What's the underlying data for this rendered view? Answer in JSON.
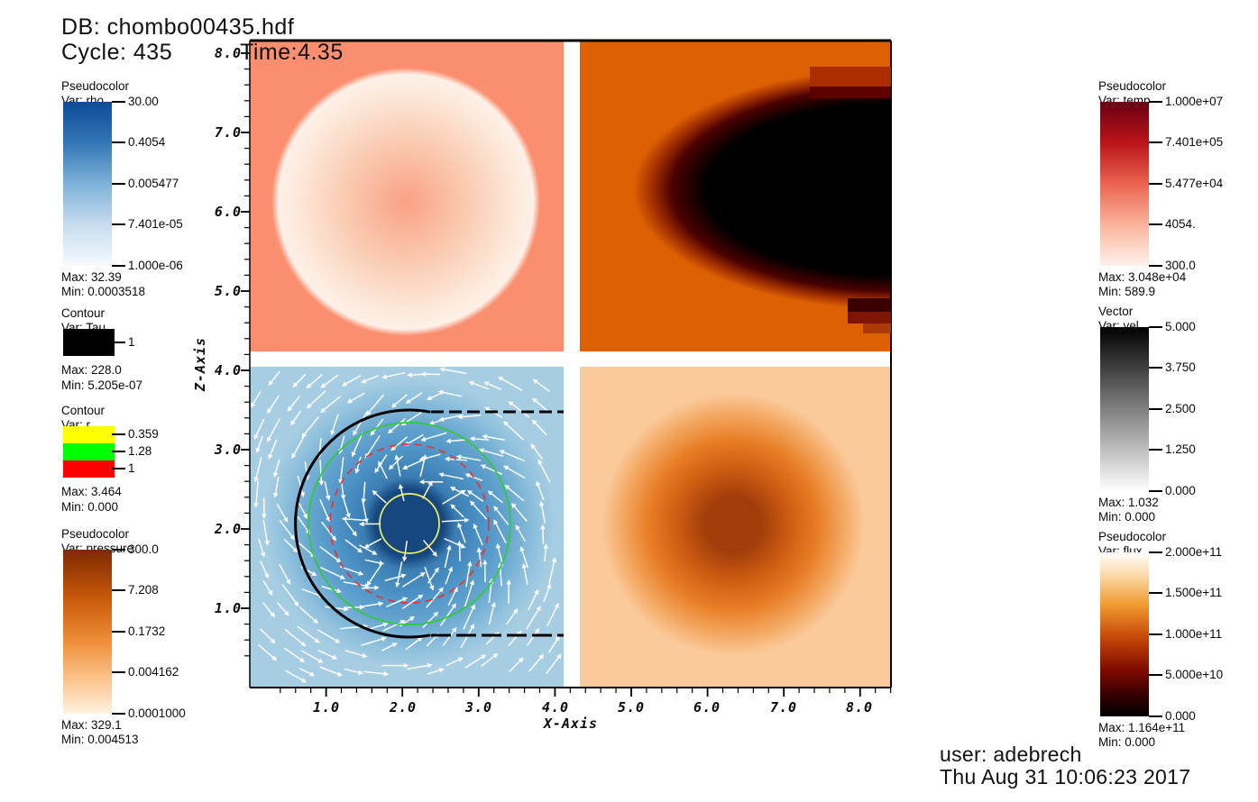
{
  "header": {
    "db": "DB: chombo00435.hdf",
    "cycle": "Cycle: 435",
    "time": "Time:4.35"
  },
  "footer": {
    "user": "user: adebrech",
    "datetime": "Thu Aug 31 10:06:23 2017"
  },
  "axes": {
    "x": {
      "title": "X-Axis",
      "ticks": [
        "1.0",
        "2.0",
        "3.0",
        "4.0",
        "5.0",
        "6.0",
        "7.0",
        "8.0"
      ]
    },
    "z": {
      "title": "Z-Axis",
      "ticks": [
        "8.0",
        "7.0",
        "6.0",
        "5.0",
        "4.0",
        "3.0",
        "2.0",
        "1.0"
      ]
    }
  },
  "legends": {
    "left": [
      {
        "type": "Pseudocolor",
        "var": "Var: rho",
        "ticks": [
          "30.00",
          "0.4054",
          "0.005477",
          "7.401e-05",
          "1.000e-06"
        ],
        "max": "Max:  32.39",
        "min": "Min:  0.0003518",
        "colors": [
          "#0C4C98",
          "#3277B6",
          "#7FB2D9",
          "#C7DCEF",
          "#F5FAFE"
        ],
        "gradient_css": "background:linear-gradient(180deg,#0C4C98 0%,#3277B6 25%,#7FB2D9 50%,#C7DCEF 75%,#F5FAFE 100%)"
      },
      {
        "type": "Contour",
        "var": "Var: Tau",
        "entries": [
          {
            "color": "#000000",
            "label": "1"
          }
        ],
        "max": "Max:  228.0",
        "min": "Min:  5.205e-07"
      },
      {
        "type": "Contour",
        "var": "Var: r",
        "entries": [
          {
            "color": "#FFFF00",
            "label": "0.359"
          },
          {
            "color": "#00FF00",
            "label": "1.28"
          },
          {
            "color": "#FF0000",
            "label": "1"
          }
        ],
        "max": "Max:  3.464",
        "min": "Min:  0.000"
      },
      {
        "type": "Pseudocolor",
        "var": "Var: pressure",
        "ticks": [
          "300.0",
          "7.208",
          "0.1732",
          "0.004162",
          "0.0001000"
        ],
        "max": "Max:  329.1",
        "min": "Min:  0.004513",
        "colors": [
          "#7E2A03",
          "#C45608",
          "#EE8C36",
          "#FCC288",
          "#FEF2E2"
        ],
        "gradient_css": "background:linear-gradient(180deg,#7E2A03 0%,#C45608 28%,#EE8C36 55%,#FCC288 78%,#FEF2E2 100%)"
      }
    ],
    "right": [
      {
        "type": "Pseudocolor",
        "var": "Var: temp",
        "ticks": [
          "1.000e+07",
          "7.401e+05",
          "5.477e+04",
          "4054.",
          "300.0"
        ],
        "max": "Max:  3.048e+04",
        "min": "Min:  589.9",
        "colors": [
          "#690012",
          "#BB1419",
          "#EA6450",
          "#FAB49C",
          "#FFF2EC"
        ],
        "gradient_css": "background:linear-gradient(180deg,#690012 0%,#BB1419 25%,#EA6450 50%,#FAB49C 75%,#FFF2EC 100%)"
      },
      {
        "type": "Vector",
        "var": "Var: vel",
        "ticks": [
          "5.000",
          "3.750",
          "2.500",
          "1.250",
          "0.000"
        ],
        "max": "Max:  1.032",
        "min": "Min:  0.000",
        "colors": [
          "#000000",
          "#FFFFFF"
        ],
        "gradient_css": "background:linear-gradient(180deg,#000000 0%,#FFFFFF 100%)"
      },
      {
        "type": "Pseudocolor",
        "var": "Var: flux",
        "ticks": [
          "2.000e+11",
          "1.500e+11",
          "1.000e+11",
          "5.000e+10",
          "0.000"
        ],
        "max": "Max:  1.164e+11",
        "min": "Min:  0.000",
        "colors": [
          "#FFFFFF",
          "#F09A2E",
          "#C64708",
          "#7E0A00",
          "#000000"
        ],
        "gradient_css": "background:linear-gradient(180deg,#FFFFFF 0%,#FBD9A8 14%,#F09A2E 32%,#C64708 52%,#7E0A00 72%,#3B0000 86%,#000000 100%)"
      }
    ]
  },
  "viewport": {
    "quadrants": [
      {
        "id": "top-left",
        "bg_css": "background-color:#FA8E6E;background-image:radial-gradient(circle 152px at 173px 179px,#F9A184 0%,#FACBB2 45%,#FDE9DB 80%,#FDF0E7 93%,#FA8E6E 98%)"
      },
      {
        "id": "top-right",
        "bg_css": "background-color:#DD6103;background-image:radial-gradient(ellipse 292px 136px at 345px 165px,#000000 0%,#000000 70%,#4A0100 83%,#A33000 91%,#DD6103 98%)"
      },
      {
        "id": "bottom-left",
        "bg_css": "background-color:#A6CDE2;background-image:radial-gradient(circle 172px at 177px 174px,#16477E 0%,#16477E 22%,#3B7DB3 30%,#4E95C7 48%,#62A2CE 62%,#90C1DD 82%,#A6CDE2 94%)"
      },
      {
        "id": "bottom-right",
        "bg_css": "background-color:#FBCA9B;background-image:radial-gradient(circle 152px at 170px 175px,#A23C0A 0%,#A23C0A 20%,#CE5E12 42%,#E87E26 62%,#F4AB66 82%,#FBCA9B 96%)"
      }
    ],
    "overlay_colors": {
      "vectors": "#FFFFFF",
      "contour_tau": "#000000",
      "contour_r": [
        "#F2F266",
        "#2FCC2F",
        "#E63232"
      ]
    }
  }
}
